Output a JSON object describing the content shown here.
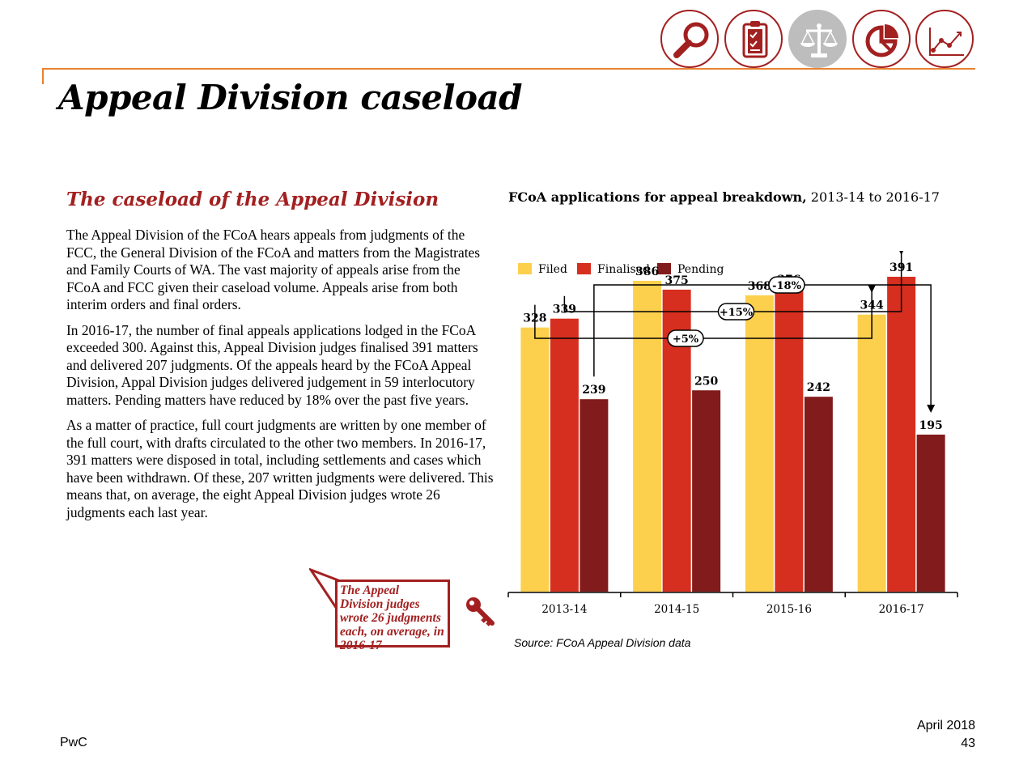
{
  "nav": {
    "icons": [
      {
        "name": "magnifier-icon",
        "active": false
      },
      {
        "name": "clipboard-checklist-icon",
        "active": false
      },
      {
        "name": "scales-icon",
        "active": true
      },
      {
        "name": "pie-chart-icon",
        "active": false
      },
      {
        "name": "line-chart-icon",
        "active": false
      }
    ]
  },
  "page": {
    "title": "Appeal Division caseload"
  },
  "left": {
    "section_title": "The caseload of the Appeal Division",
    "paragraphs": [
      "The Appeal Division of the FCoA hears appeals from judgments of the FCC, the General Division of the FCoA and matters from the Magistrates and Family Courts of WA. The vast majority of appeals arise from the FCoA and FCC given their caseload volume. Appeals arise from both interim orders and final orders.",
      "In 2016-17, the number of final appeals applications lodged in the FCoA exceeded 300. Against this, Appeal Division judges finalised 391 matters and delivered 207 judgments. Of the appeals heard by the FCoA Appeal Division, Appal Division judges delivered judgement in 59 interlocutory matters.  Pending matters have reduced by 18% over the past five years.",
      "As a matter of practice, full court judgments are written by one member of the full court, with drafts circulated to the other two members. In 2016-17, 391 matters were disposed in total, including settlements and cases which have been withdrawn. Of these, 207 written judgments were delivered. This means that, on average, the eight Appeal Division judges wrote 26 judgments each last year."
    ],
    "callout": "The Appeal Division judges wrote 26 judgments each, on average, in 2016-17",
    "callout_icon": "key-icon"
  },
  "chart_title": {
    "bold": "FCoA applications for appeal breakdown,",
    "regular": " 2013-14 to 2016-17"
  },
  "chart_data": {
    "type": "bar",
    "title": "FCoA applications for appeal breakdown, 2013-14 to 2016-17",
    "categories": [
      "2013-14",
      "2014-15",
      "2015-16",
      "2016-17"
    ],
    "series": [
      {
        "name": "Filed",
        "color": "#fcd04c",
        "values": [
          328,
          386,
          368,
          344
        ]
      },
      {
        "name": "Finalised",
        "color": "#d62f1f",
        "values": [
          339,
          375,
          376,
          391
        ]
      },
      {
        "name": "Pending",
        "color": "#821b1b",
        "values": [
          239,
          250,
          242,
          195
        ]
      }
    ],
    "ylim": [
      0,
      400
    ],
    "grid": false,
    "legend": "top-left",
    "annotations": [
      {
        "label": "-18%",
        "series": "Pending",
        "from": "2013-14",
        "to": "2016-17"
      },
      {
        "label": "+15%",
        "series": "Finalised",
        "from": "2013-14",
        "to": "2016-17"
      },
      {
        "label": "+5%",
        "series": "Filed",
        "from": "2013-14",
        "to": "2016-17"
      }
    ]
  },
  "source_note": "Source: FCoA Appeal Division data",
  "footer": {
    "brand": "PwC",
    "date": "April 2018",
    "page_number": "43"
  }
}
